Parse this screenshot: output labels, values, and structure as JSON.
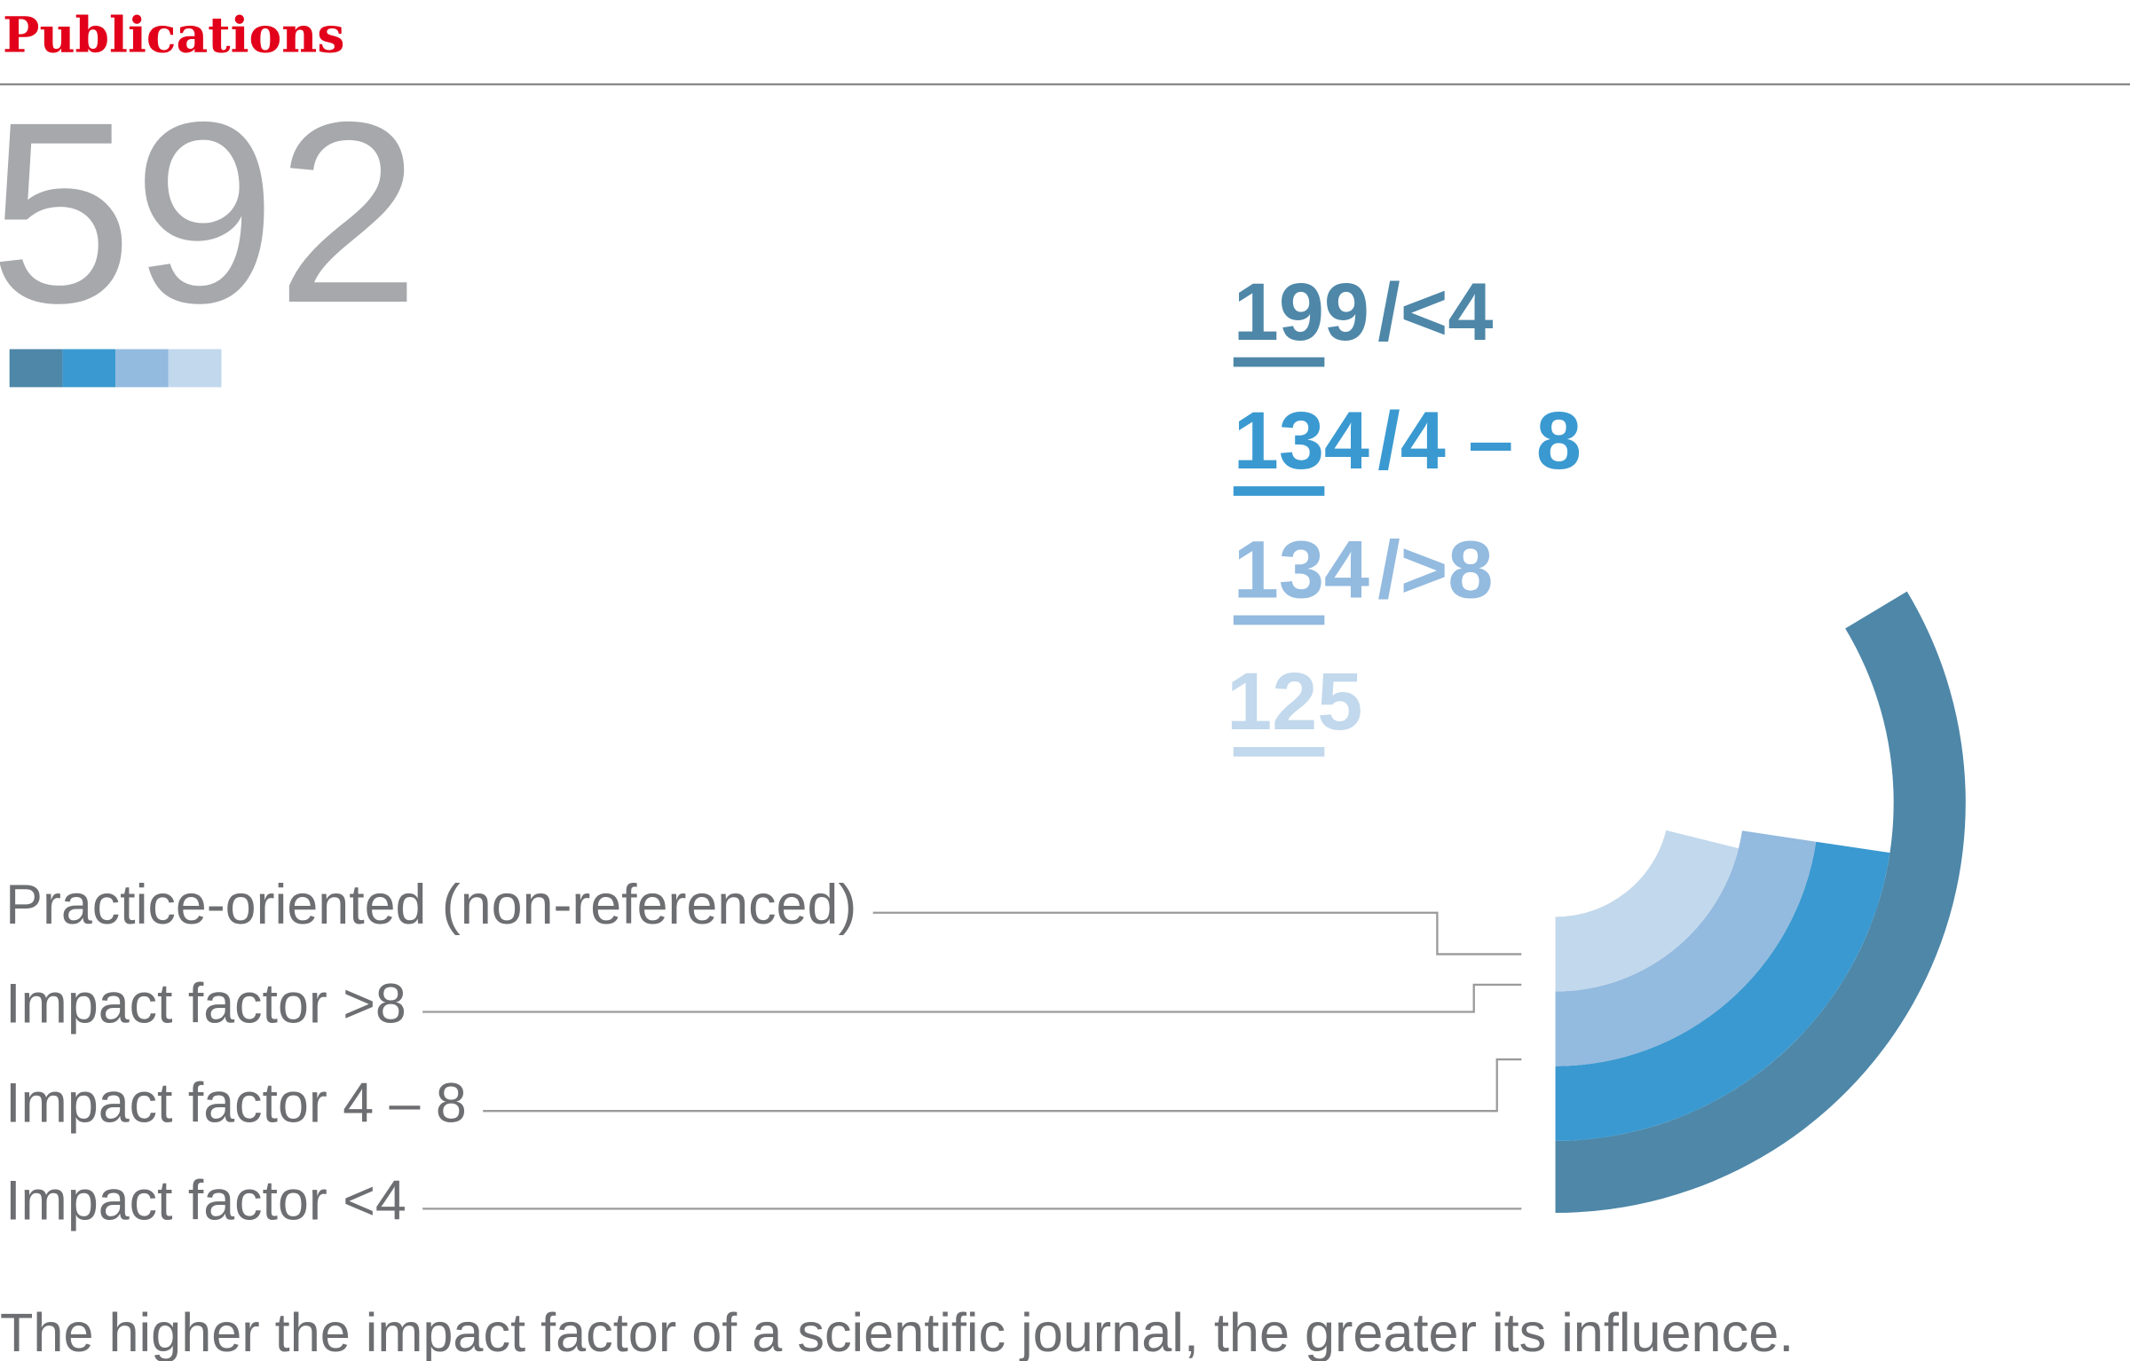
{
  "chart_data": {
    "type": "radial-bar",
    "title": "Publications",
    "total": 592,
    "categories": [
      "Impact factor <4",
      "Impact factor 4 – 8",
      "Impact factor >8",
      "Practice-oriented (non-referenced)"
    ],
    "short_labels": [
      "/<4",
      "/4 – 8",
      "/>8",
      null
    ],
    "values": [
      199,
      134,
      134,
      125
    ],
    "colors": [
      "#4e87a8",
      "#3a99d0",
      "#93badf",
      "#c2d8ec"
    ],
    "caption": "The higher the impact factor of a scientific journal, the greater its influence."
  }
}
